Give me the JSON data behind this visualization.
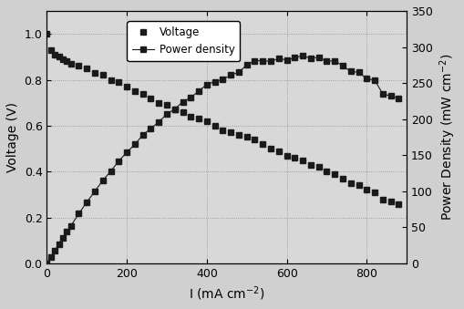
{
  "voltage_I": [
    0,
    10,
    20,
    30,
    40,
    50,
    60,
    80,
    100,
    120,
    140,
    160,
    180,
    200,
    220,
    240,
    260,
    280,
    300,
    320,
    340,
    360,
    380,
    400,
    420,
    440,
    460,
    480,
    500,
    520,
    540,
    560,
    580,
    600,
    620,
    640,
    660,
    680,
    700,
    720,
    740,
    760,
    780,
    800,
    820,
    840,
    860,
    880
  ],
  "voltage_V": [
    1.0,
    0.93,
    0.91,
    0.9,
    0.89,
    0.88,
    0.87,
    0.86,
    0.85,
    0.83,
    0.82,
    0.8,
    0.79,
    0.77,
    0.75,
    0.74,
    0.72,
    0.7,
    0.69,
    0.67,
    0.66,
    0.64,
    0.63,
    0.62,
    0.6,
    0.58,
    0.57,
    0.56,
    0.55,
    0.54,
    0.52,
    0.5,
    0.49,
    0.47,
    0.46,
    0.45,
    0.43,
    0.42,
    0.4,
    0.39,
    0.37,
    0.35,
    0.34,
    0.32,
    0.31,
    0.28,
    0.27,
    0.26
  ],
  "power_I": [
    0,
    10,
    20,
    30,
    40,
    50,
    60,
    80,
    100,
    120,
    140,
    160,
    180,
    200,
    220,
    240,
    260,
    280,
    300,
    320,
    340,
    360,
    380,
    400,
    420,
    440,
    460,
    480,
    500,
    520,
    540,
    560,
    580,
    600,
    620,
    640,
    660,
    680,
    700,
    720,
    740,
    760,
    780,
    800,
    820,
    840,
    860,
    880
  ],
  "power_P": [
    0,
    9,
    18,
    27,
    36,
    44,
    52,
    69,
    85,
    100,
    115,
    128,
    142,
    154,
    165,
    178,
    187,
    196,
    207,
    214,
    224,
    230,
    239,
    248,
    252,
    255,
    261,
    265,
    275,
    281,
    281,
    280,
    284,
    282,
    285,
    288,
    284,
    286,
    280,
    281,
    274,
    266,
    265,
    256,
    254,
    235,
    232,
    229
  ],
  "xlabel": "I (mA cm$^{-2}$)",
  "ylabel_left": "Voltage (V)",
  "ylabel_right": "Power Density (mW cm$^{-2}$)",
  "xlim": [
    0,
    900
  ],
  "ylim_left": [
    0.0,
    1.1
  ],
  "ylim_right": [
    0,
    350
  ],
  "xticks": [
    0,
    200,
    400,
    600,
    800
  ],
  "yticks_left": [
    0.0,
    0.2,
    0.4,
    0.6,
    0.8,
    1.0
  ],
  "yticks_right": [
    0,
    50,
    100,
    150,
    200,
    250,
    300,
    350
  ],
  "line_color": "#1a1a1a",
  "marker": "s",
  "markersize": 4,
  "legend_voltage": "Voltage",
  "legend_power": "Power density",
  "fig_bg": "#d0d0d0",
  "ax_bg": "#d8d8d8"
}
